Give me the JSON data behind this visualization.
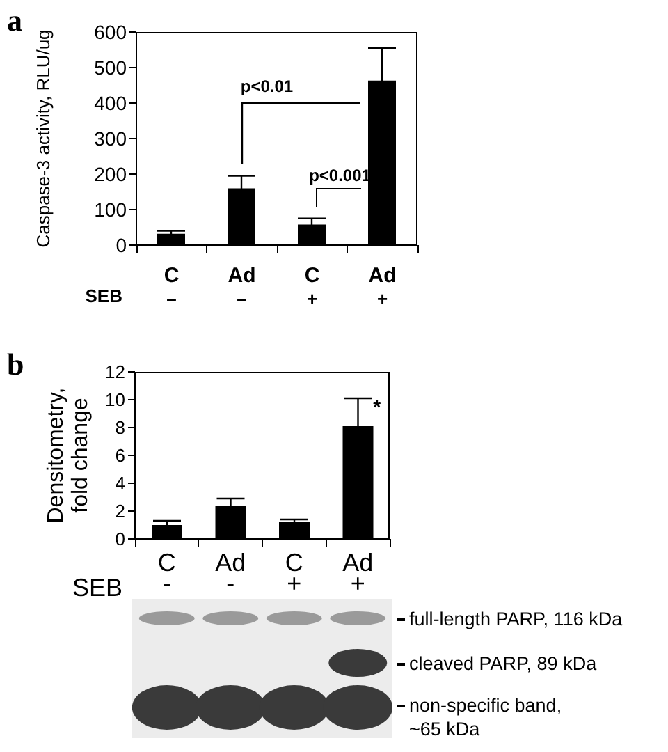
{
  "chart_data": [
    {
      "type": "bar",
      "title": "a",
      "categories": [
        "C",
        "Ad",
        "C",
        "Ad"
      ],
      "values": [
        32,
        160,
        58,
        463
      ],
      "errors": [
        8,
        35,
        17,
        92
      ],
      "color": "#000000",
      "ylabel": "Caspase-3 activity, RLU/ug",
      "ylim": [
        0,
        600
      ],
      "yticks": [
        0,
        100,
        200,
        300,
        400,
        500,
        600
      ],
      "annotations": [
        "SEB",
        "–",
        "–",
        "+",
        "+",
        "p<0.01",
        "p<0.001"
      ]
    },
    {
      "type": "bar",
      "title": "b",
      "categories": [
        "C",
        "Ad",
        "C",
        "Ad"
      ],
      "values": [
        1.0,
        2.4,
        1.2,
        8.1
      ],
      "errors": [
        0.3,
        0.5,
        0.2,
        2.0
      ],
      "color": "#000000",
      "ylabel": "Densitometry, fold change",
      "ylim": [
        0,
        12
      ],
      "yticks": [
        0,
        2,
        4,
        6,
        8,
        10,
        12
      ],
      "annotations": [
        "*",
        "SEB",
        "-",
        "-",
        "+",
        "+",
        "full-length PARP, 116 kDa",
        "cleaved PARP, 89 kDa",
        "non-specific band, ~65 kDa"
      ]
    }
  ]
}
